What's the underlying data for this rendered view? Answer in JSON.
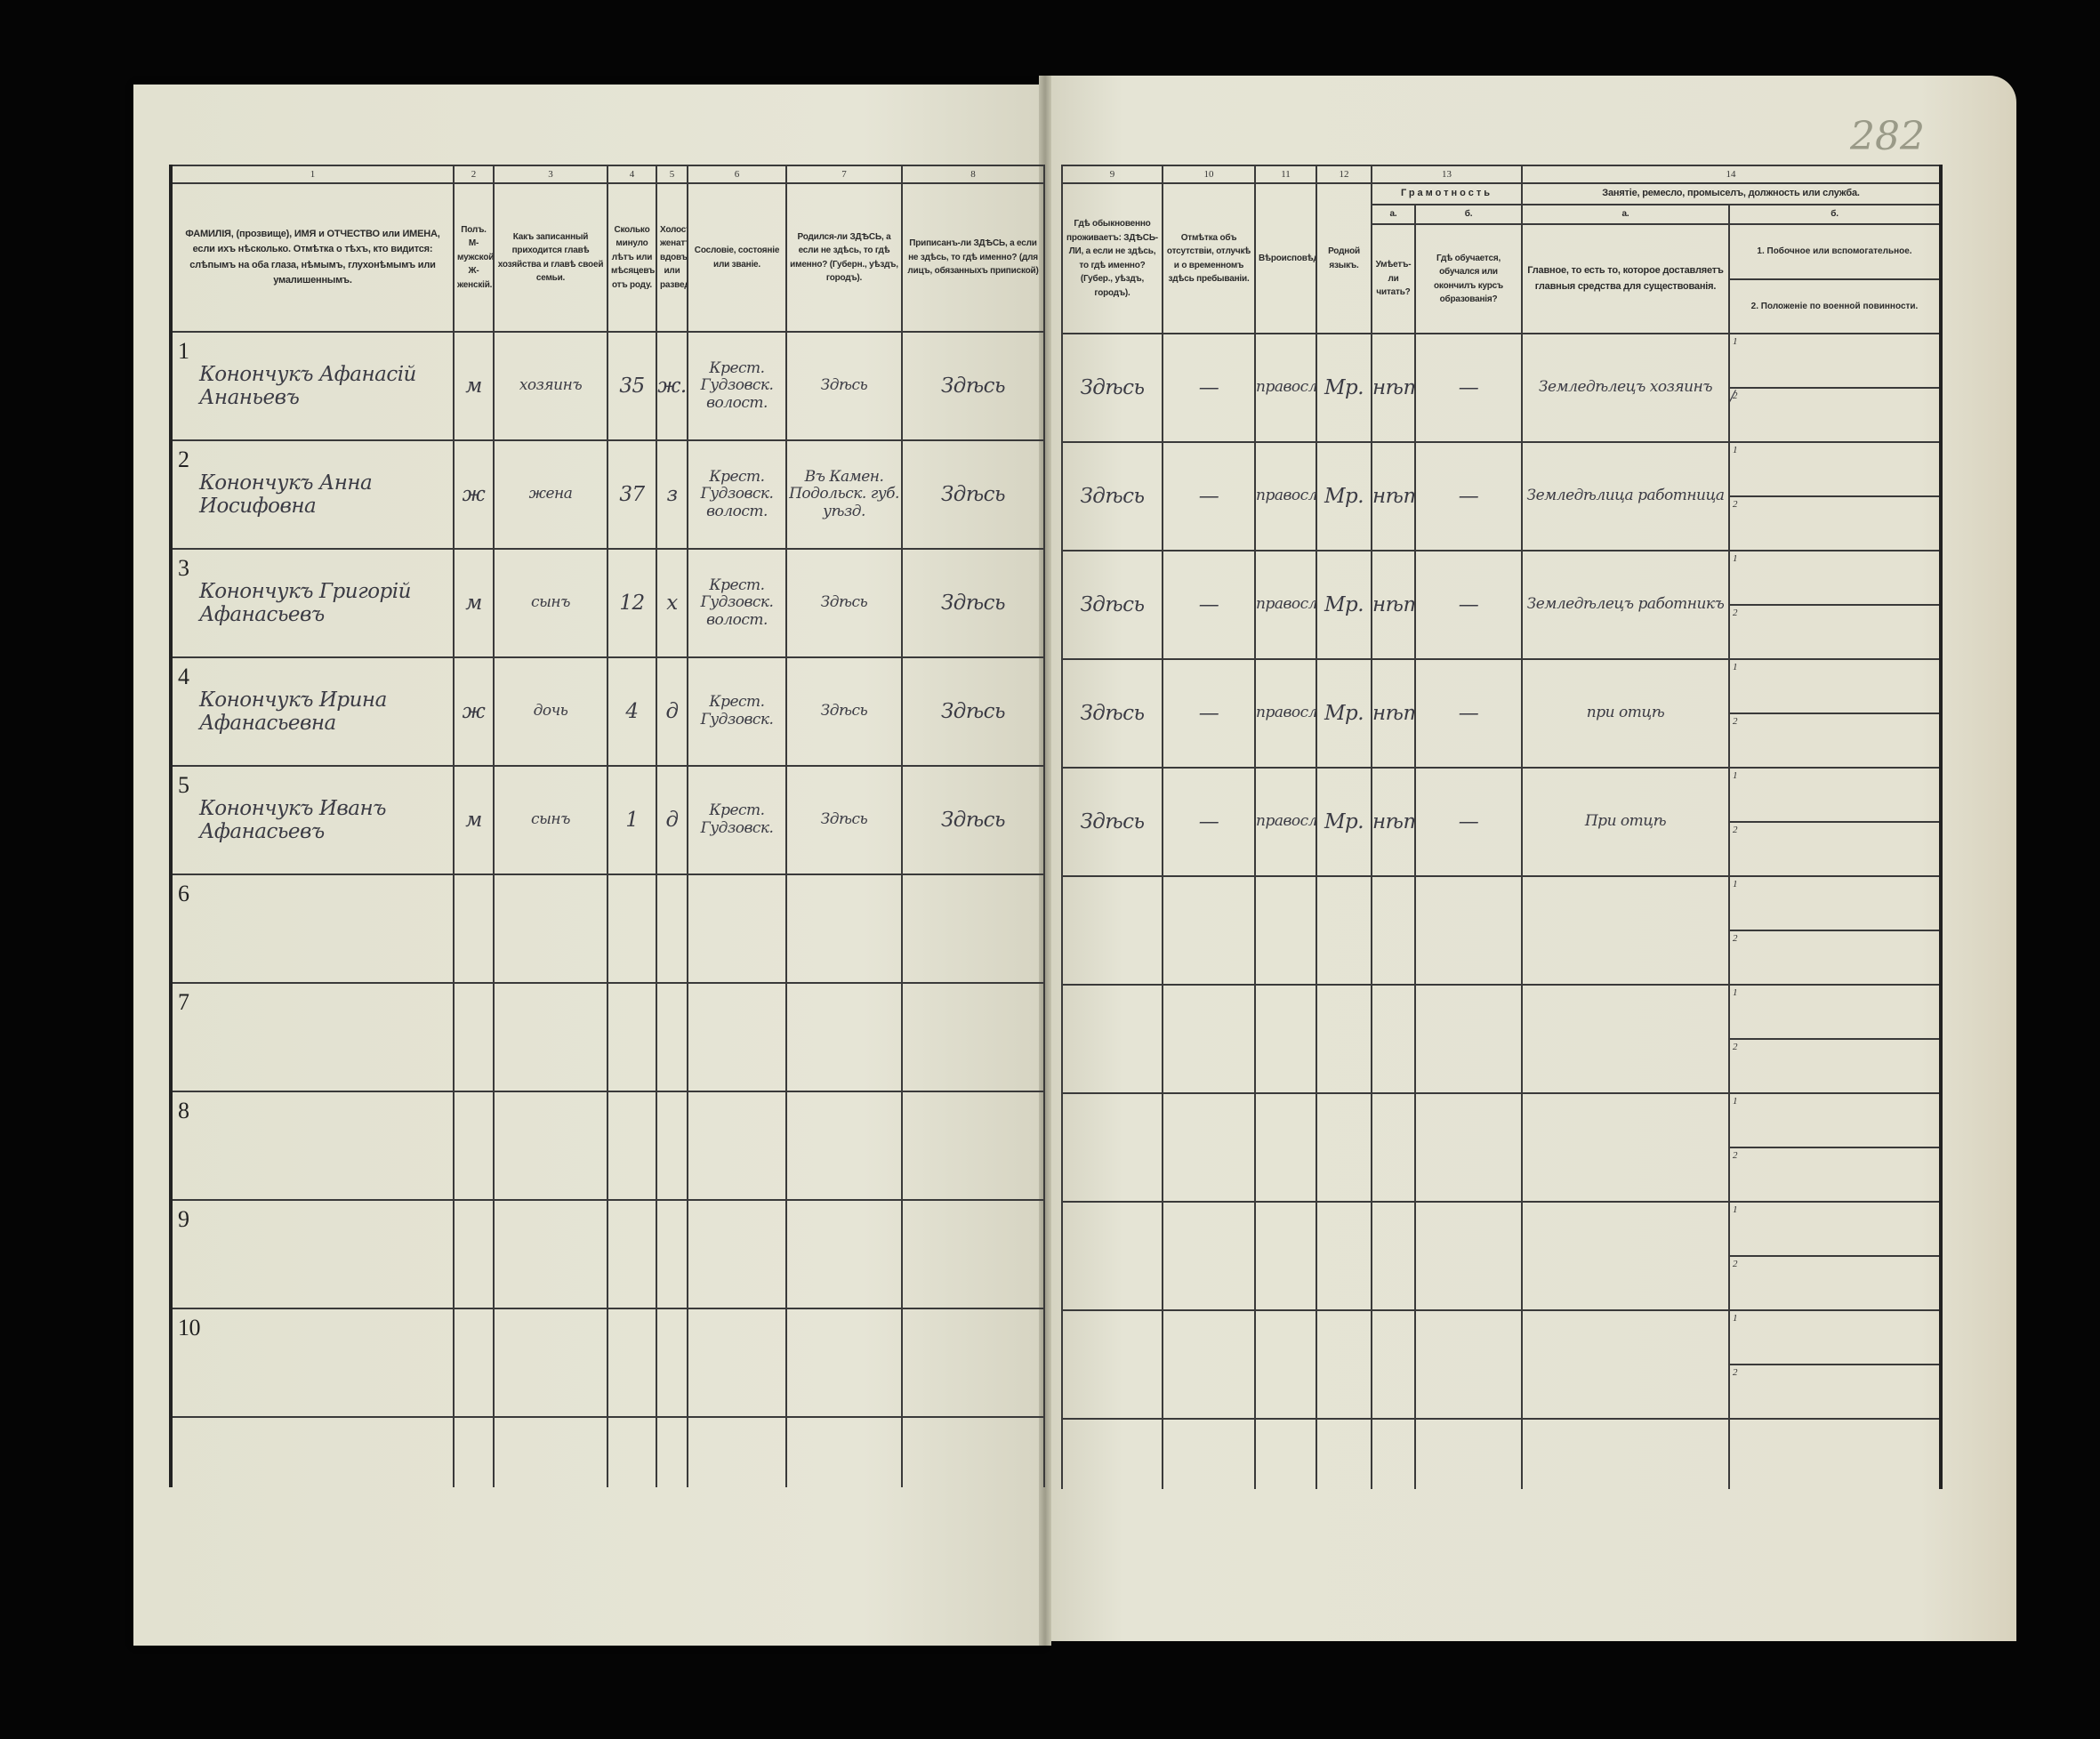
{
  "sheet_number": "282",
  "left_page": {
    "column_numbers": [
      "1",
      "2",
      "3",
      "4",
      "5",
      "6",
      "7",
      "8"
    ],
    "headers": [
      "ФАМИЛІЯ, (прозвище), ИМЯ и ОТЧЕСТВО или ИМЕНА, если ихъ нѣсколько. Отмѣтка о тѣхъ, кто видится: слѣпымъ на оба глаза, нѣмымъ, глухонѣмымъ или умалишеннымъ.",
      "Полъ. М-мужской. Ж-женскій.",
      "Какъ записанный приходится главѣ хозяйства и главѣ своей семьи.",
      "Сколько минуло лѣтъ или мѣсяцевъ отъ роду.",
      "Холостъ, женатъ, вдовъ или разведенъ.",
      "Сословіе, состояніе или званіе.",
      "Родился-ли ЗДѢСЬ, а если не здѣсь, то гдѣ именно? (Губерн., уѣздъ, городъ).",
      "Приписанъ-ли ЗДѢСЬ, а если не здѣсь, то гдѣ именно? (для лицъ, обязанныхъ припиской)"
    ]
  },
  "right_page": {
    "column_numbers": [
      "9",
      "10",
      "11",
      "12",
      "13",
      "14"
    ],
    "headers": {
      "c9": "Гдѣ обыкновенно проживаетъ: ЗДѢСЬ-ЛИ, а если не здѣсь, то гдѣ именно? (Губер., уѣздъ, городъ).",
      "c10": "Отмѣтка объ отсутствіи, отлучкѣ и о временномъ здѣсь пребываніи.",
      "c11": "Вѣроисповѣданіе.",
      "c12": "Родной языкъ.",
      "c13_title": "Грамотность",
      "c13a_letter": "а.",
      "c13b_letter": "б.",
      "c13a": "Умѣетъ-ли читать?",
      "c13b": "Гдѣ обучается, обучался или окончилъ курсъ образованія?",
      "c14_title": "Занятіе, ремесло, промыселъ, должность или служба.",
      "c14a_letter": "а.",
      "c14b_letter": "б.",
      "c14a": "Главное, то есть то, которое доставляетъ главныя средства для существованія.",
      "c14b_1": "1. Побочное или вспомогательное.",
      "c14b_2": "2. Положеніе по военной повинности."
    },
    "sub_labels": [
      "1",
      "2"
    ]
  },
  "rows": [
    {
      "n": "1",
      "name": "Конончукъ Афанасій Ананьевъ",
      "sex": "м",
      "relation": "хозяинъ",
      "age": "35",
      "marital": "ж.",
      "estate": "Крест. Гудзовск. волост.",
      "born": "Здѣсь",
      "registered": "Здѣсь",
      "resides": "Здѣсь",
      "absence": "—",
      "religion": "правосл.",
      "language": "Мр.",
      "reads": "нѣтъ",
      "education": "—",
      "occupation": "Земледѣлецъ хозяинъ",
      "side": "",
      "military": "/"
    },
    {
      "n": "2",
      "name": "Конончукъ Анна Иосифовна",
      "sex": "ж",
      "relation": "жена",
      "age": "37",
      "marital": "з",
      "estate": "Крест. Гудзовск. волост.",
      "born": "Въ Камен. Подольск. губ. уѣзд.",
      "registered": "Здѣсь",
      "resides": "Здѣсь",
      "absence": "—",
      "religion": "правосл.",
      "language": "Мр.",
      "reads": "нѣтъ",
      "education": "—",
      "occupation": "Земледѣлица работница",
      "side": "",
      "military": ""
    },
    {
      "n": "3",
      "name": "Конончукъ Григорій Афанасьевъ",
      "sex": "м",
      "relation": "сынъ",
      "age": "12",
      "marital": "х",
      "estate": "Крест. Гудзовск. волост.",
      "born": "Здѣсь",
      "registered": "Здѣсь",
      "resides": "Здѣсь",
      "absence": "—",
      "religion": "правосл.",
      "language": "Мр.",
      "reads": "нѣтъ",
      "education": "—",
      "occupation": "Земледѣлецъ работникъ",
      "side": "",
      "military": ""
    },
    {
      "n": "4",
      "name": "Конончукъ Ирина Афанасьевна",
      "sex": "ж",
      "relation": "дочь",
      "age": "4",
      "marital": "д",
      "estate": "Крест. Гудзовск.",
      "born": "Здѣсь",
      "registered": "Здѣсь",
      "resides": "Здѣсь",
      "absence": "—",
      "religion": "правосл.",
      "language": "Мр.",
      "reads": "нѣтъ",
      "education": "—",
      "occupation": "при отцѣ",
      "side": "",
      "military": ""
    },
    {
      "n": "5",
      "name": "Конончукъ Иванъ Афанасьевъ",
      "sex": "м",
      "relation": "сынъ",
      "age": "1",
      "marital": "д",
      "estate": "Крест. Гудзовск.",
      "born": "Здѣсь",
      "registered": "Здѣсь",
      "resides": "Здѣсь",
      "absence": "—",
      "religion": "правосл.",
      "language": "Мр.",
      "reads": "нѣтъ",
      "education": "—",
      "occupation": "При отцѣ",
      "side": "",
      "military": ""
    },
    {
      "n": "6"
    },
    {
      "n": "7"
    },
    {
      "n": "8"
    },
    {
      "n": "9"
    },
    {
      "n": "10"
    }
  ],
  "colors": {
    "paper": "#e3e2d2",
    "ink": "#3b3b44",
    "rules": "#3a3a3a",
    "background": "#050505"
  }
}
